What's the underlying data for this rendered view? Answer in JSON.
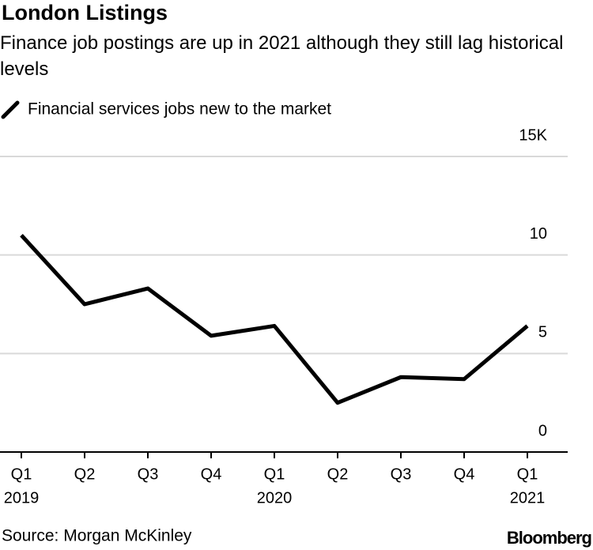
{
  "chart_data": {
    "type": "line",
    "title": "London Listings",
    "subtitle": "Finance job postings are up in 2021 although they still lag historical levels",
    "categories": [
      "Q1",
      "Q2",
      "Q3",
      "Q4",
      "Q1",
      "Q2",
      "Q3",
      "Q4",
      "Q1"
    ],
    "x_sublabels": [
      "2019",
      null,
      null,
      null,
      "2020",
      null,
      null,
      null,
      "2021"
    ],
    "series": [
      {
        "name": "Financial services jobs new to the market",
        "color": "#000000",
        "values": [
          11.0,
          7.5,
          8.3,
          5.9,
          6.4,
          2.5,
          3.8,
          3.7,
          6.4
        ]
      }
    ],
    "ylim": [
      0,
      15
    ],
    "yticks": [
      0,
      5,
      10,
      {
        "value": 15,
        "label": "15K"
      }
    ],
    "grid": true,
    "source": "Source: Morgan McKinley",
    "brand": "Bloomberg"
  }
}
